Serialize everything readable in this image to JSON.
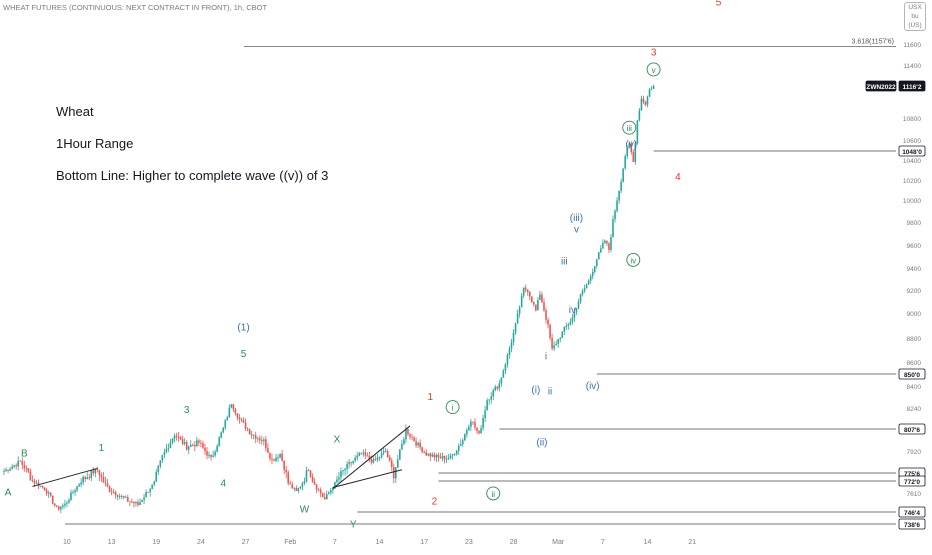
{
  "header": {
    "symbol_title": "WHEAT FUTURES (CONTINUOUS: NEXT CONTRACT IN FRONT), 1h, CBOT",
    "currency": "USX",
    "unit": "bu (US)"
  },
  "notes": [
    "Wheat",
    "1Hour Range",
    "Bottom Line: Higher to complete wave ((v)) of 3"
  ],
  "colors": {
    "up": "#26a69a",
    "down": "#ef5350",
    "wave_green": "#2e8b57",
    "wave_red": "#e53935",
    "wave_blue": "#3f6fae",
    "level_line": "#777777"
  },
  "chart_data": {
    "type": "candlestick",
    "x_ticks": [
      {
        "label": "10",
        "i": 31
      },
      {
        "label": "13",
        "i": 53
      },
      {
        "label": "19",
        "i": 75
      },
      {
        "label": "24",
        "i": 97
      },
      {
        "label": "27",
        "i": 119
      },
      {
        "label": "Feb",
        "i": 141
      },
      {
        "label": "7",
        "i": 163
      },
      {
        "label": "14",
        "i": 185
      },
      {
        "label": "17",
        "i": 207
      },
      {
        "label": "23",
        "i": 229
      },
      {
        "label": "28",
        "i": 251
      },
      {
        "label": "Mar",
        "i": 273
      },
      {
        "label": "7",
        "i": 295
      },
      {
        "label": "14",
        "i": 317
      },
      {
        "label": "21",
        "i": 339
      }
    ],
    "y_range": [
      7386,
      11600
    ],
    "y_ticks": [
      "11600",
      "11400",
      "10800",
      "10600",
      "10400",
      "10200",
      "10000",
      "9800",
      "9600",
      "9400",
      "9200",
      "9000",
      "8800",
      "8600",
      "8400",
      "8240",
      "7920",
      "7610"
    ],
    "y_tick_values": [
      11600,
      11400,
      10800,
      10600,
      10400,
      10200,
      10000,
      9800,
      9600,
      9400,
      9200,
      9000,
      8800,
      8600,
      8400,
      8240,
      7920,
      7610
    ],
    "price_labels": [
      {
        "text": "ZWN2022",
        "value": 11162,
        "dark": true
      },
      {
        "text": "1116'2",
        "value": 11162,
        "dark": true
      },
      {
        "text": "1048'0",
        "value": 10480
      },
      {
        "text": "850'0",
        "value": 8500
      },
      {
        "text": "807'6",
        "value": 8076
      },
      {
        "text": "775'6",
        "value": 7756
      },
      {
        "text": "772'0",
        "value": 7720
      },
      {
        "text": "746'4",
        "value": 7464
      },
      {
        "text": "738'6",
        "value": 7386
      }
    ],
    "fib_label": "3.618(1157'6)",
    "fib_value": 11576,
    "waypoints": [
      [
        0,
        7770
      ],
      [
        8,
        7840
      ],
      [
        14,
        7720
      ],
      [
        20,
        7650
      ],
      [
        26,
        7490
      ],
      [
        30,
        7520
      ],
      [
        38,
        7720
      ],
      [
        46,
        7780
      ],
      [
        52,
        7640
      ],
      [
        60,
        7560
      ],
      [
        66,
        7520
      ],
      [
        74,
        7700
      ],
      [
        78,
        7880
      ],
      [
        84,
        8040
      ],
      [
        90,
        7950
      ],
      [
        96,
        7980
      ],
      [
        102,
        7860
      ],
      [
        108,
        8080
      ],
      [
        112,
        8280
      ],
      [
        116,
        8150
      ],
      [
        122,
        8040
      ],
      [
        128,
        7990
      ],
      [
        132,
        7850
      ],
      [
        136,
        7900
      ],
      [
        140,
        7700
      ],
      [
        144,
        7620
      ],
      [
        150,
        7790
      ],
      [
        154,
        7660
      ],
      [
        158,
        7560
      ],
      [
        164,
        7720
      ],
      [
        170,
        7820
      ],
      [
        176,
        7900
      ],
      [
        182,
        7840
      ],
      [
        188,
        7920
      ],
      [
        192,
        7750
      ],
      [
        198,
        8070
      ],
      [
        204,
        7960
      ],
      [
        208,
        7900
      ],
      [
        214,
        7870
      ],
      [
        220,
        7870
      ],
      [
        226,
        8000
      ],
      [
        230,
        8150
      ],
      [
        234,
        8030
      ],
      [
        238,
        8300
      ],
      [
        244,
        8420
      ],
      [
        248,
        8650
      ],
      [
        252,
        8900
      ],
      [
        256,
        9210
      ],
      [
        258,
        9200
      ],
      [
        262,
        9020
      ],
      [
        264,
        9170
      ],
      [
        268,
        8890
      ],
      [
        270,
        8700
      ],
      [
        272,
        8760
      ],
      [
        276,
        8870
      ],
      [
        280,
        8960
      ],
      [
        284,
        9150
      ],
      [
        288,
        9280
      ],
      [
        292,
        9480
      ],
      [
        296,
        9640
      ],
      [
        298,
        9560
      ],
      [
        300,
        9810
      ],
      [
        304,
        10200
      ],
      [
        306,
        10440
      ],
      [
        308,
        10550
      ],
      [
        310,
        10380
      ],
      [
        312,
        10780
      ],
      [
        314,
        11020
      ],
      [
        316,
        10960
      ],
      [
        318,
        11120
      ],
      [
        320,
        11162
      ]
    ],
    "trendlines": [
      {
        "from": [
          14,
          7670
        ],
        "to": [
          46,
          7790
        ]
      },
      {
        "from": [
          162,
          7660
        ],
        "to": [
          196,
          7780
        ]
      },
      {
        "from": [
          162,
          7650
        ],
        "to": [
          200,
          8100
        ]
      }
    ],
    "wave_labels": [
      {
        "text": "A",
        "i": 2,
        "v": 7590,
        "color": "wave_green"
      },
      {
        "text": "B",
        "i": 10,
        "v": 7880,
        "color": "wave_green"
      },
      {
        "text": "1",
        "i": 48,
        "v": 7920,
        "color": "wave_green"
      },
      {
        "text": "3",
        "i": 90,
        "v": 8200,
        "color": "wave_green"
      },
      {
        "text": "4",
        "i": 108,
        "v": 7670,
        "color": "wave_green"
      },
      {
        "text": "(1)",
        "i": 118,
        "v": 8860,
        "color": "wave_blue"
      },
      {
        "text": "5",
        "i": 118,
        "v": 8640,
        "color": "wave_green"
      },
      {
        "text": "X",
        "i": 164,
        "v": 7980,
        "color": "wave_green"
      },
      {
        "text": "W",
        "i": 148,
        "v": 7460,
        "color": "wave_green"
      },
      {
        "text": "Y",
        "i": 172,
        "v": 7350,
        "color": "wave_green"
      },
      {
        "text": "1",
        "i": 210,
        "v": 8300,
        "color": "wave_red"
      },
      {
        "text": "2",
        "i": 212,
        "v": 7520,
        "color": "wave_red"
      },
      {
        "text": "i",
        "i": 221,
        "v": 8220,
        "circle": true,
        "color": "wave_green"
      },
      {
        "text": "ii",
        "i": 241,
        "v": 7580,
        "circle": true,
        "color": "wave_green"
      },
      {
        "text": "(i)",
        "i": 262,
        "v": 8350,
        "color": "wave_blue"
      },
      {
        "text": "(ii)",
        "i": 265,
        "v": 7960,
        "color": "wave_blue"
      },
      {
        "text": "i",
        "i": 267,
        "v": 8620,
        "color": "wave_blue"
      },
      {
        "text": "ii",
        "i": 269,
        "v": 8340,
        "color": "wave_blue"
      },
      {
        "text": "iii",
        "i": 276,
        "v": 9430,
        "color": "wave_blue"
      },
      {
        "text": "iv",
        "i": 280,
        "v": 9000,
        "color": "wave_blue"
      },
      {
        "text": "v",
        "i": 282,
        "v": 9710,
        "color": "wave_blue"
      },
      {
        "text": "(iii)",
        "i": 282,
        "v": 9810,
        "color": "wave_blue"
      },
      {
        "text": "(iv)",
        "i": 290,
        "v": 8380,
        "color": "wave_blue"
      },
      {
        "text": "iii",
        "i": 308,
        "v": 10680,
        "circle": true,
        "color": "wave_green"
      },
      {
        "text": "(v)",
        "i": 309,
        "v": 10520,
        "color": "wave_blue"
      },
      {
        "text": "iv",
        "i": 310,
        "v": 9440,
        "circle": true,
        "color": "wave_green"
      },
      {
        "text": "v",
        "i": 320,
        "v": 11310,
        "circle": true,
        "color": "wave_green"
      },
      {
        "text": "3",
        "i": 320,
        "v": 11490,
        "color": "wave_red"
      },
      {
        "text": "4",
        "i": 332,
        "v": 10200,
        "color": "wave_red"
      },
      {
        "text": "5",
        "i": 352,
        "v": 12150,
        "color": "wave_red"
      }
    ]
  }
}
